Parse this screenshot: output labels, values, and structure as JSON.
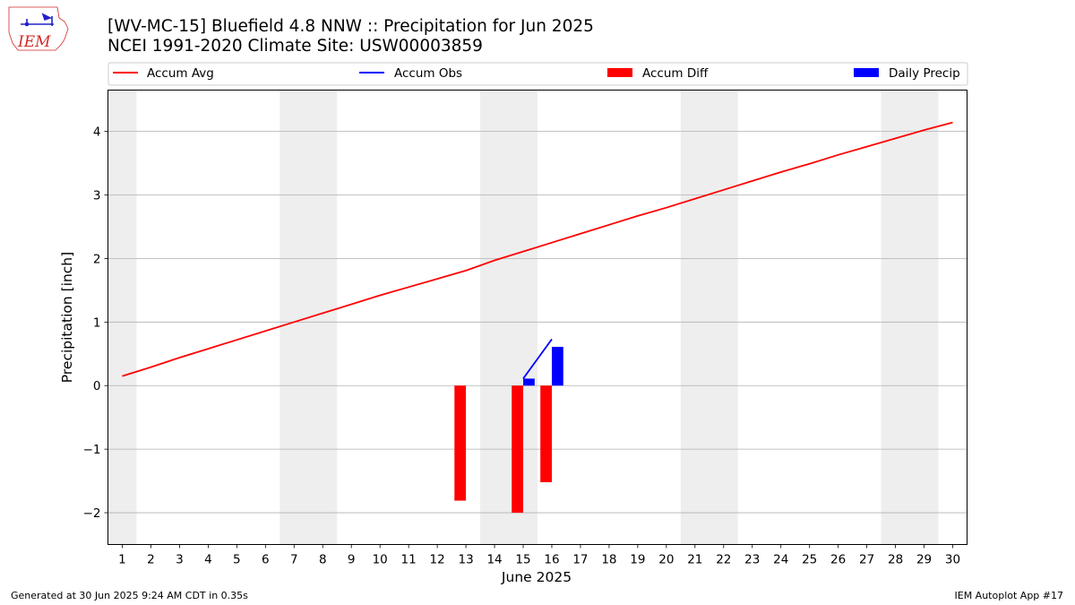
{
  "logo": {
    "text": "IEM"
  },
  "title": {
    "line1": "[WV-MC-15] Bluefield 4.8 NNW :: Precipitation for Jun 2025",
    "line2": "NCEI 1991-2020 Climate Site: USW00003859"
  },
  "legend": {
    "placement": "top",
    "items": [
      {
        "label": "Accum Avg",
        "kind": "line",
        "color": "#ff0000"
      },
      {
        "label": "Accum Obs",
        "kind": "line",
        "color": "#0000ff"
      },
      {
        "label": "Accum Diff",
        "kind": "bar",
        "color": "#ff0000"
      },
      {
        "label": "Daily Precip",
        "kind": "bar",
        "color": "#0000ff"
      }
    ]
  },
  "footer": {
    "left": "Generated at 30 Jun 2025 9:24 AM CDT in 0.35s",
    "right": "IEM Autoplot App #17"
  },
  "colors": {
    "avg": "#ff0000",
    "obs": "#0000ff",
    "diff": "#ff0000",
    "daily": "#0000ff",
    "weekend": "#eeeeee",
    "grid": "#b0b0b0"
  },
  "chart_data": {
    "type": "bar",
    "xlabel": "June 2025",
    "ylabel": "Precipitation [inch]",
    "xlim": [
      0.5,
      30.5
    ],
    "ylim": [
      -2.5,
      4.65
    ],
    "xticks": [
      1,
      2,
      3,
      4,
      5,
      6,
      7,
      8,
      9,
      10,
      11,
      12,
      13,
      14,
      15,
      16,
      17,
      18,
      19,
      20,
      21,
      22,
      23,
      24,
      25,
      26,
      27,
      28,
      29,
      30
    ],
    "yticks": [
      -2,
      -1,
      0,
      1,
      2,
      3,
      4
    ],
    "ytick_labels": [
      "−2",
      "−1",
      "0",
      "1",
      "2",
      "3",
      "4"
    ],
    "grid": "horizontal",
    "weekend_shading": [
      [
        0.5,
        1.5
      ],
      [
        6.5,
        8.5
      ],
      [
        13.5,
        15.5
      ],
      [
        20.5,
        22.5
      ],
      [
        27.5,
        29.5
      ]
    ],
    "accum_avg": {
      "name": "Accum Avg",
      "x": [
        1,
        2,
        3,
        4,
        5,
        6,
        7,
        8,
        9,
        10,
        11,
        12,
        13,
        14,
        15,
        16,
        17,
        18,
        19,
        20,
        21,
        22,
        23,
        24,
        25,
        26,
        27,
        28,
        29,
        30
      ],
      "values": [
        0.15,
        0.29,
        0.44,
        0.58,
        0.72,
        0.86,
        1.0,
        1.14,
        1.28,
        1.42,
        1.55,
        1.68,
        1.81,
        1.97,
        2.11,
        2.25,
        2.39,
        2.53,
        2.67,
        2.8,
        2.94,
        3.08,
        3.22,
        3.36,
        3.49,
        3.63,
        3.76,
        3.89,
        4.02,
        4.14
      ]
    },
    "accum_obs": {
      "name": "Accum Obs",
      "x": [
        15,
        16
      ],
      "values": [
        0.11,
        0.73
      ]
    },
    "accum_diff": {
      "name": "Accum Diff",
      "x": [
        13,
        15,
        16
      ],
      "values": [
        -1.81,
        -2.0,
        -1.52
      ]
    },
    "daily_precip": {
      "name": "Daily Precip",
      "x": [
        15,
        16
      ],
      "values": [
        0.11,
        0.61
      ]
    }
  }
}
